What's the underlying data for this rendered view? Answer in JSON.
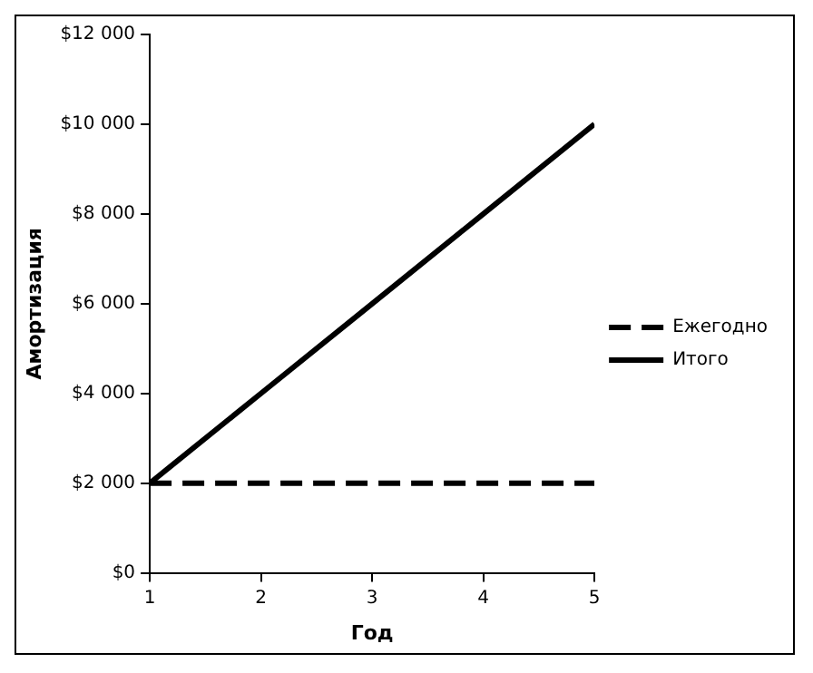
{
  "chart_data": {
    "type": "line",
    "xlabel": "Год",
    "ylabel": "Амортизация",
    "x": [
      1,
      2,
      3,
      4,
      5
    ],
    "series": [
      {
        "name": "Ежегодно",
        "color": "#000000",
        "values": [
          2000,
          2000,
          2000,
          2000,
          2000
        ],
        "line_style": "dashed"
      },
      {
        "name": "Итого",
        "color": "#000000",
        "values": [
          2000,
          4000,
          6000,
          8000,
          10000
        ],
        "line_style": "solid"
      }
    ],
    "xlim": [
      1,
      5
    ],
    "xticks": [
      1,
      2,
      3,
      4,
      5
    ],
    "ylim": [
      0,
      12000
    ],
    "yticks": [
      {
        "value": 0,
        "label": "$0"
      },
      {
        "value": 2000,
        "label": "$2 000"
      },
      {
        "value": 4000,
        "label": "$4 000"
      },
      {
        "value": 6000,
        "label": "$6 000"
      },
      {
        "value": 8000,
        "label": "$8 000"
      },
      {
        "value": 10000,
        "label": "$10 000"
      },
      {
        "value": 12000,
        "label": "$12 000"
      }
    ],
    "grid": false,
    "legend": "right",
    "marker": "none"
  }
}
